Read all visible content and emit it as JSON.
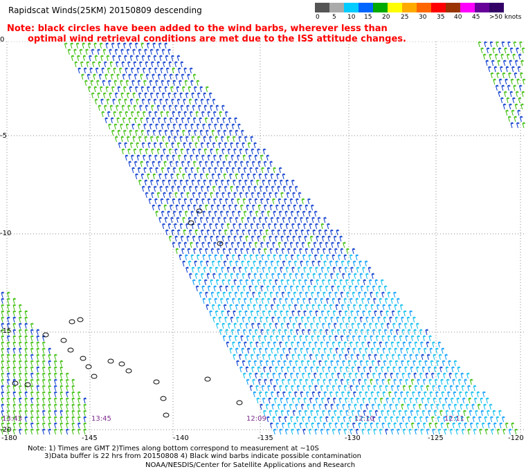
{
  "title": "Rapidscat Winds(25KM) 20150809 descending",
  "note": {
    "line1": "Note: black circles have been added to the wind barbs, wherever less than",
    "line2": "optimal wind retrieval conditions are met due to the ISS attitude changes."
  },
  "legend": {
    "labels": [
      "0",
      "5",
      "10",
      "15",
      "20",
      "25",
      "30",
      "35",
      "40",
      "45",
      ">50 knots"
    ],
    "colors": [
      "#555555",
      "#aaaaaa",
      "#00ccff",
      "#0066ff",
      "#00aa00",
      "#ffff00",
      "#ffaa00",
      "#ff6600",
      "#ff0000",
      "#993300",
      "#ff00ff",
      "#660099",
      "#330066"
    ]
  },
  "axes": {
    "y_ticks": [
      "0",
      "-5",
      "-10",
      "-15",
      "-20"
    ],
    "x_ticks": [
      "-180",
      "-145",
      "-140",
      "-135",
      "-130",
      "-125",
      "-120"
    ]
  },
  "times": [
    "13:43",
    "13:45",
    "12:09",
    "12:10",
    "12:11"
  ],
  "footnotes": {
    "line1": "Note: 1) Times are GMT 2)Times along bottom correspond to measurement at ~10S",
    "line2": "3)Data buffer is 22 hrs from 20150808 4) Black wind barbs indicate possible contamination",
    "line3": "NOAA/NESDIS/Center for Satellite Applications and Research"
  }
}
